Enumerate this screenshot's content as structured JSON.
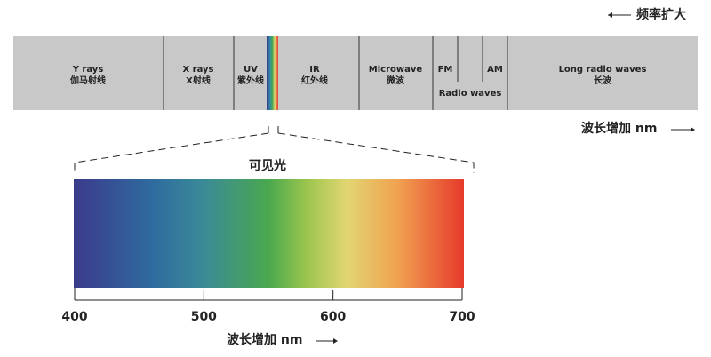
{
  "frequency_label": "频率扩大",
  "wavelength_label": "波长增加 nm",
  "bands": [
    {
      "en": "Y rays",
      "zh": "伽马射线"
    },
    {
      "en": "X rays",
      "zh": "X射线"
    },
    {
      "en": "UV",
      "zh": "紫外线"
    },
    {
      "en": "IR",
      "zh": "红外线"
    },
    {
      "en": "Microwave",
      "zh": "微波"
    },
    {
      "en": "Long radio waves",
      "zh": "长波"
    }
  ],
  "radio": {
    "fm": "FM",
    "am": "AM",
    "label": "Radio waves"
  },
  "visible": {
    "title": "可见光",
    "ticks": [
      400,
      500,
      600,
      700
    ],
    "axis_label": "波长增加 nm"
  }
}
